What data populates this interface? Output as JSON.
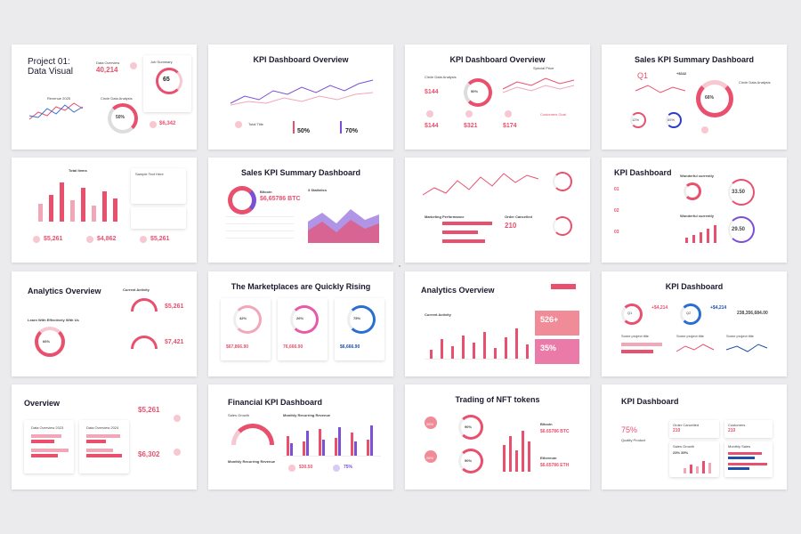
{
  "slides": {
    "s1": {
      "title_line1": "Project 01:",
      "title_line2": "Data Visual",
      "data_overview_label": "Data Overview",
      "data_overview_value": "40,214",
      "job_summary_label": "Job Summary",
      "ring_value": "65",
      "revenue_label": "Revenue 2025",
      "circle_label": "Circle Data Analysis",
      "donut_value": "50%",
      "small_value": "$6,342"
    },
    "s2": {
      "title": "KPI Dashboard Overview",
      "label1": "Total Title",
      "pct1": "50%",
      "pct2": "70%"
    },
    "s3": {
      "title": "KPI Dashboard Overview",
      "circle_label": "Circle Data Analysis",
      "donut_value": "50%",
      "special_price": "Special Price",
      "v1": "$144",
      "v2": "$144",
      "v3": "$321",
      "v4": "$174",
      "v5": "$174",
      "label_customer": "Customers Goal"
    },
    "s4": {
      "title": "Sales KPI Summary Dashboard",
      "q1": "Q1",
      "kpi_top": "+$342",
      "donut_value": "66%",
      "circle_label": "Circle Data Analysis",
      "r1": "12%",
      "r2": "65%"
    },
    "s5": {
      "title": "Total Items",
      "right_title": "Sample Text Here",
      "v1": "$5,261",
      "v2": "$4,862",
      "v3": "$5,261"
    },
    "s6": {
      "title": "Sales KPI Summary Dashboard",
      "bitcoin": "Bitcoin",
      "bitcoin_value": "$6,65786 BTC",
      "statistics": "3 Statistics"
    },
    "s7": {
      "title": "",
      "marketing": "Marketing Performance",
      "order_label": "Order Cancelled",
      "order_value": "210"
    },
    "s8": {
      "title": "KPI Dashboard",
      "wonderful": "Wonderful currently",
      "w_value": "33.50",
      "wonderful2": "Wonderful currently",
      "w_value2": "29.50",
      "n1": "01",
      "n2": "02",
      "n3": "03"
    },
    "s9": {
      "title": "Analytics Overview",
      "current_activity": "Current Activity",
      "donut_value": "66%",
      "v1": "$5,261",
      "v2": "$7,421",
      "learn": "Learn With Effectively With Us"
    },
    "s10": {
      "title": "The Marketplaces are Quickly Rising",
      "p1": "42%",
      "p2": "26%",
      "p3": "75%",
      "v1": "$67,866.90",
      "v2": "76,666.90",
      "v3": "$6,666.90"
    },
    "s11": {
      "title": "Analytics Overview",
      "current_activity": "Current Activity",
      "kpi1": "526+",
      "kpi2": "35%"
    },
    "s12": {
      "title": "KPI Dashboard",
      "q1": "Q1",
      "q2": "Q2",
      "v1": "+$4,214",
      "v2": "+$4,214",
      "big": "238,356,684.00",
      "some1": "Some project title",
      "some2": "Some project title",
      "some3": "Some project title"
    },
    "s13": {
      "title": "Overview",
      "v1": "$5,261",
      "v2": "$6,302",
      "q1": "Data Overview 2023",
      "q2": "Data Overview 2024"
    },
    "s14": {
      "title": "Financial KPI Dashboard",
      "sales_growth": "Sales Growth",
      "monthly": "Monthly Recurring Revenue",
      "v1": "$30.50",
      "v2": "75%",
      "monthly2": "Monthly Recurring Revenue"
    },
    "s15": {
      "title": "Trading of NFT tokens",
      "p1": "26%",
      "p2": "90%",
      "p3": "26%",
      "p4": "90%",
      "bitcoin": "Bitcoin",
      "bitcoin_value": "$6.65786 BTC",
      "ethereum": "Ethereum",
      "eth_value": "$6.65786 ETH"
    },
    "s16": {
      "title": "KPI Dashboard",
      "pct": "75%",
      "quality": "Quality Product",
      "order": "Order Cancelled",
      "order_val": "210",
      "customers": "Customers",
      "cust_val": "210",
      "sales_growth": "Sales Growth",
      "sg_val": "23% 35%",
      "monthly": "Monthly Sales"
    }
  },
  "colors": {
    "accent": "#e8506e",
    "accent_light": "#f7c8d2",
    "purple": "#7b4fd6",
    "blue": "#1d4fa8",
    "bg": "#ebebed"
  }
}
